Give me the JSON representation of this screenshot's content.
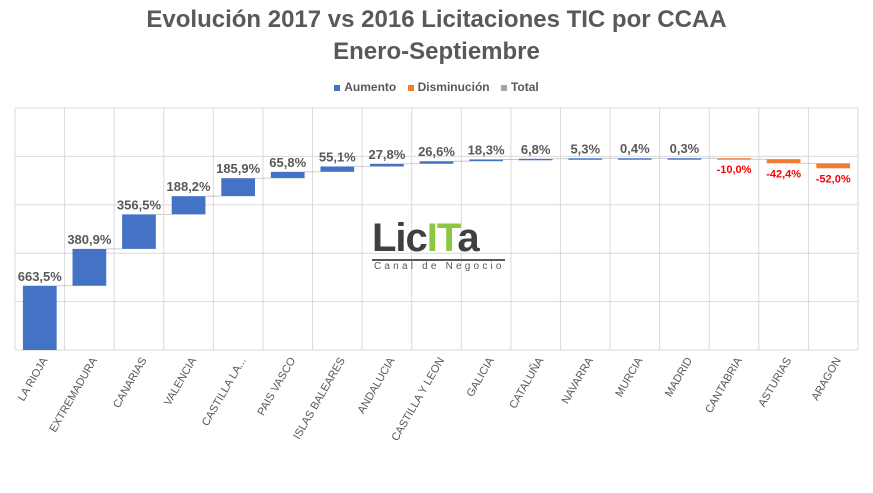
{
  "chart_data": {
    "type": "waterfall",
    "title": "Evolución 2017 vs 2016 Licitaciones TIC por CCAA",
    "subtitle": "Enero-Septiembre",
    "legend": [
      {
        "name": "Aumento",
        "color": "#4472c4"
      },
      {
        "name": "Disminución",
        "color": "#ed7d31"
      },
      {
        "name": "Total",
        "color": "#a5a5a5"
      }
    ],
    "legend_position": "top",
    "categories": [
      "LA RIOJA",
      "EXTREMADURA",
      "CANARIAS",
      "VALENCIA",
      "CASTILLA LA...",
      "PAIS VASCO",
      "ISLAS BALEARES",
      "ANDALUCIA",
      "CASTILLA Y LEON",
      "GALICIA",
      "CATALUÑA",
      "NAVARRA",
      "MURCIA",
      "MADRID",
      "CANTABRIA",
      "ASTURIAS",
      "ARAGON"
    ],
    "values": [
      663.5,
      380.9,
      356.5,
      188.2,
      185.9,
      65.8,
      55.1,
      27.8,
      26.6,
      18.3,
      6.8,
      5.3,
      0.4,
      0.3,
      -10.0,
      -42.4,
      -52.0
    ],
    "labels": [
      "663,5%",
      "380,9%",
      "356,5%",
      "188,2%",
      "185,9%",
      "65,8%",
      "55,1%",
      "27,8%",
      "26,6%",
      "18,3%",
      "6,8%",
      "5,3%",
      "0,4%",
      "0,3%",
      "-10,0%",
      "-42,4%",
      "-52,0%"
    ],
    "ylim": [
      0,
      2500
    ],
    "grid": true,
    "negative_label_color": "#ff0000"
  },
  "logo": {
    "main_a": "Lic",
    "main_b": "IT",
    "main_c": "a",
    "tagline": "Canal de Negocio"
  }
}
